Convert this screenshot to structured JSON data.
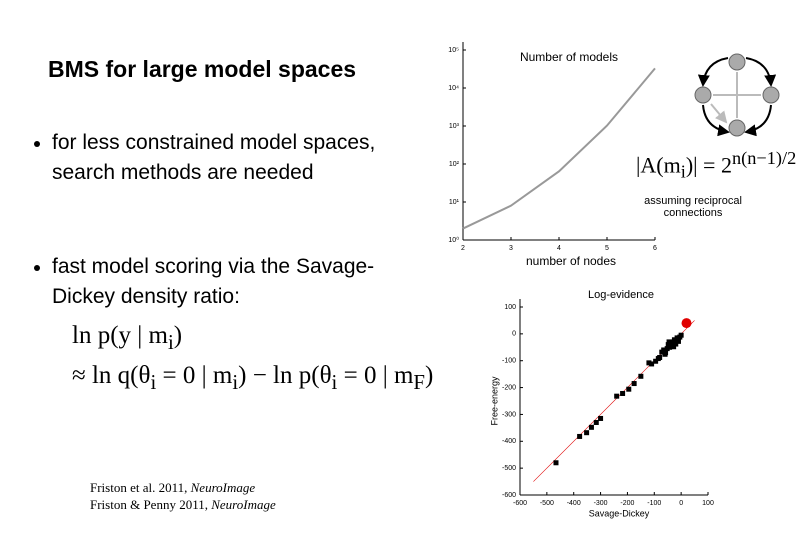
{
  "title": "BMS for large model spaces",
  "bullets": [
    "for less constrained model spaces, search methods are needed",
    "fast model scoring via the Savage-Dickey density ratio:"
  ],
  "formulas": [
    [
      {
        "t": "ln p(y | m"
      },
      {
        "t": "i",
        "sub": true
      },
      {
        "t": ")"
      }
    ],
    [
      {
        "t": "≈ ln q(θ"
      },
      {
        "t": "i",
        "sub": true
      },
      {
        "t": " = 0 | m"
      },
      {
        "t": "i",
        "sub": true
      },
      {
        "t": ") − ln p(θ"
      },
      {
        "t": "i",
        "sub": true
      },
      {
        "t": " = 0 | m"
      },
      {
        "t": "F",
        "sub": true
      },
      {
        "t": ")"
      }
    ]
  ],
  "model_count_formula": [
    {
      "t": "|A(m"
    },
    {
      "t": "i",
      "sub": true
    },
    {
      "t": ")| = 2"
    },
    {
      "t": "n(n−1)/2",
      "sup": true
    }
  ],
  "note": "assuming reciprocal connections",
  "citations": [
    [
      {
        "t": "Friston et al. 2011, "
      },
      {
        "t": "NeuroImage",
        "italic": true
      }
    ],
    [
      {
        "t": "Friston & Penny 2011, "
      },
      {
        "t": "NeuroImage",
        "italic": true
      }
    ]
  ],
  "chart_data": [
    {
      "type": "line",
      "title": "Number of models",
      "x_label": "number of nodes",
      "x": [
        2,
        3,
        4,
        5,
        6
      ],
      "values": [
        2,
        8,
        64,
        1024,
        32768
      ],
      "color": "#999999",
      "xlim": [
        2,
        6
      ],
      "xticks": [
        2,
        3,
        4,
        5,
        6
      ],
      "ylim": [
        1,
        100000
      ],
      "y_scale": "log",
      "yticks": [
        {
          "value": 1,
          "label": "10⁰"
        },
        {
          "value": 10,
          "label": "10¹"
        },
        {
          "value": 100,
          "label": "10²"
        },
        {
          "value": 1000,
          "label": "10³"
        },
        {
          "value": 10000,
          "label": "10⁴"
        },
        {
          "value": 100000,
          "label": "10⁵"
        }
      ]
    },
    {
      "type": "scatter",
      "title": "Log-evidence",
      "x_label": "Savage-Dickey",
      "y_label": "Free-energy",
      "series": [
        {
          "color": "#000000",
          "size": 2.5,
          "x": [
            -466,
            -378,
            -352,
            -334,
            -316,
            -300,
            -240,
            -218,
            -195,
            -175,
            -150,
            -120,
            -110,
            -95,
            -80,
            -72,
            -65,
            -58,
            -52,
            -48,
            -43,
            -38,
            -34,
            -30,
            -25,
            -20,
            -15,
            -10,
            -5,
            0,
            -60,
            -45,
            -85,
            -28
          ],
          "values": [
            -480,
            -382,
            -368,
            -348,
            -330,
            -315,
            -232,
            -222,
            -206,
            -185,
            -158,
            -108,
            -112,
            -102,
            -88,
            -68,
            -60,
            -70,
            -55,
            -40,
            -50,
            -36,
            -45,
            -30,
            -22,
            -38,
            -15,
            -28,
            -12,
            -5,
            -76,
            -30,
            -92,
            -48
          ]
        },
        {
          "color": "#e00000",
          "size": 5,
          "x": [
            20
          ],
          "values": [
            40
          ]
        }
      ],
      "xlim": [
        -600,
        100
      ],
      "xticks": [
        -600,
        -500,
        -400,
        -300,
        -200,
        -100,
        0,
        100
      ],
      "ylim": [
        -600,
        100
      ],
      "yticks": [
        100,
        0,
        -100,
        -200,
        -300,
        -400,
        -500,
        -600
      ]
    }
  ]
}
